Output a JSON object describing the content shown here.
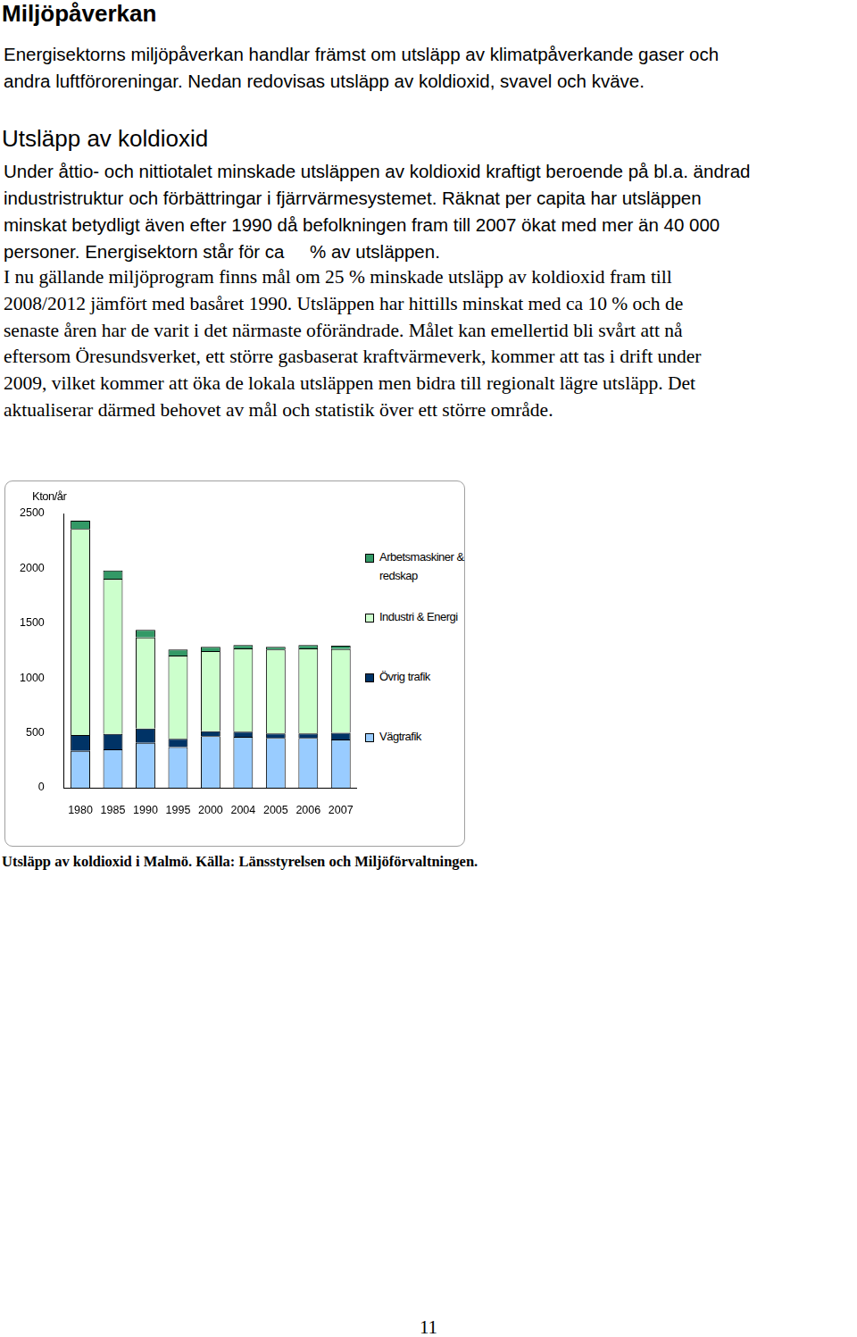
{
  "heading": "Miljöpåverkan",
  "intro": [
    "Energisektorns miljöpåverkan handlar främst om utsläpp av klimatpåverkande gaser och",
    "andra luftföroreningar. Nedan redovisas utsläpp av koldioxid, svavel och kväve."
  ],
  "section_heading": "Utsläpp av koldioxid",
  "paragraph_1": [
    "Under åttio- och nittiotalet minskade utsläppen av koldioxid kraftigt beroende på bl.a. ändrad",
    "industristruktur och förbättringar i fjärrvärmesystemet. Räknat per capita har utsläppen",
    "minskat betydligt även efter 1990 då befolkningen fram till 2007 ökat med mer än 40 000",
    "personer. Energisektorn står för ca     % av utsläppen."
  ],
  "paragraph_2": [
    "I nu gällande miljöprogram finns mål om 25 % minskade utsläpp av koldioxid fram till",
    "2008/2012 jämfört med basåret 1990. Utsläppen har hittills minskat med ca 10 % och de",
    "senaste åren har de varit i det närmaste oförändrade. Målet kan emellertid bli svårt att nå",
    "eftersom Öresundsverket, ett större gasbaserat kraftvärmeverk, kommer att tas i drift under",
    "2009, vilket kommer att öka de lokala utsläppen men bidra till regionalt lägre utsläpp. Det",
    "aktualiserar därmed behovet av mål och statistik över ett större område."
  ],
  "chart_data": {
    "type": "bar",
    "stacked": true,
    "grid": false,
    "legend": "right",
    "y_label": "Kton/år",
    "categories": [
      "1980",
      "1985",
      "1990",
      "1995",
      "2000",
      "2004",
      "2005",
      "2006",
      "2007"
    ],
    "series": [
      {
        "name": "Vägtrafik",
        "color": "#99ccff",
        "values": [
          335,
          350,
          410,
          370,
          470,
          465,
          455,
          455,
          440
        ]
      },
      {
        "name": "Övrig trafik",
        "color": "#003366",
        "values": [
          145,
          140,
          130,
          75,
          45,
          45,
          40,
          40,
          60
        ]
      },
      {
        "name": "Industri & Energi",
        "color": "#ccffcc",
        "values": [
          1880,
          1415,
          830,
          760,
          730,
          760,
          765,
          775,
          765
        ]
      },
      {
        "name": "Arbetsmaskiner & redskap",
        "color": "#339966",
        "values": [
          75,
          75,
          70,
          55,
          40,
          30,
          25,
          30,
          30
        ]
      }
    ],
    "ylim": [
      0,
      2500
    ],
    "yticks": [
      0,
      500,
      1000,
      1500,
      2000,
      2500
    ]
  },
  "caption": "Utsläpp av koldioxid i Malmö. Källa: Länsstyrelsen och Miljöförvaltningen.",
  "page_number": "11"
}
